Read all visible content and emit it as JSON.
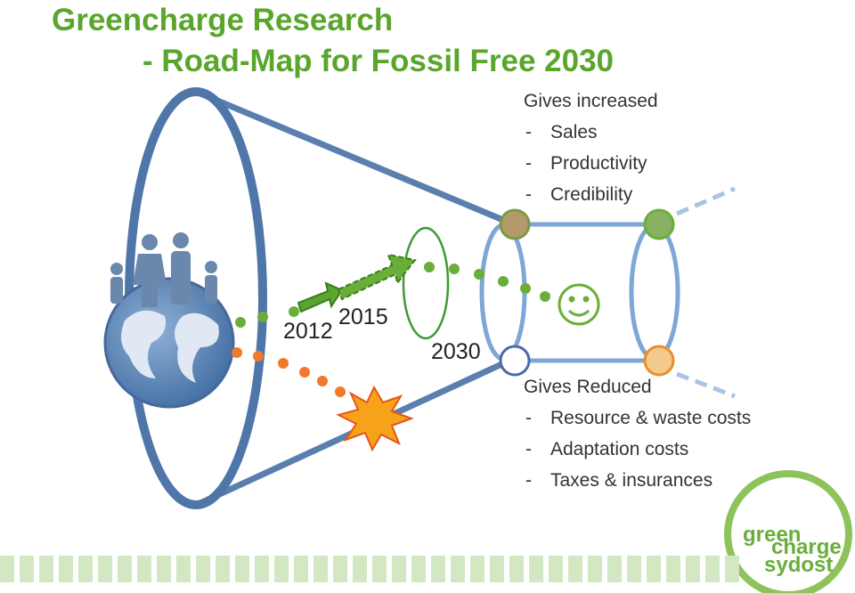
{
  "header": {
    "title": "Greencharge Research",
    "subtitle": "- Road-Map for Fossil Free 2030"
  },
  "timeline": {
    "years": [
      "2012",
      "2015",
      "2030"
    ]
  },
  "benefits_increased": {
    "heading": "Gives increased",
    "bullet": "-",
    "items": [
      "Sales",
      "Productivity",
      "Credibility"
    ]
  },
  "benefits_reduced": {
    "heading": "Gives Reduced",
    "bullet": "-",
    "items": [
      "Resource & waste costs",
      "Adaptation costs",
      "Taxes & insurances"
    ]
  },
  "logo": {
    "lines": [
      "green",
      "charge",
      "sydost"
    ]
  }
}
